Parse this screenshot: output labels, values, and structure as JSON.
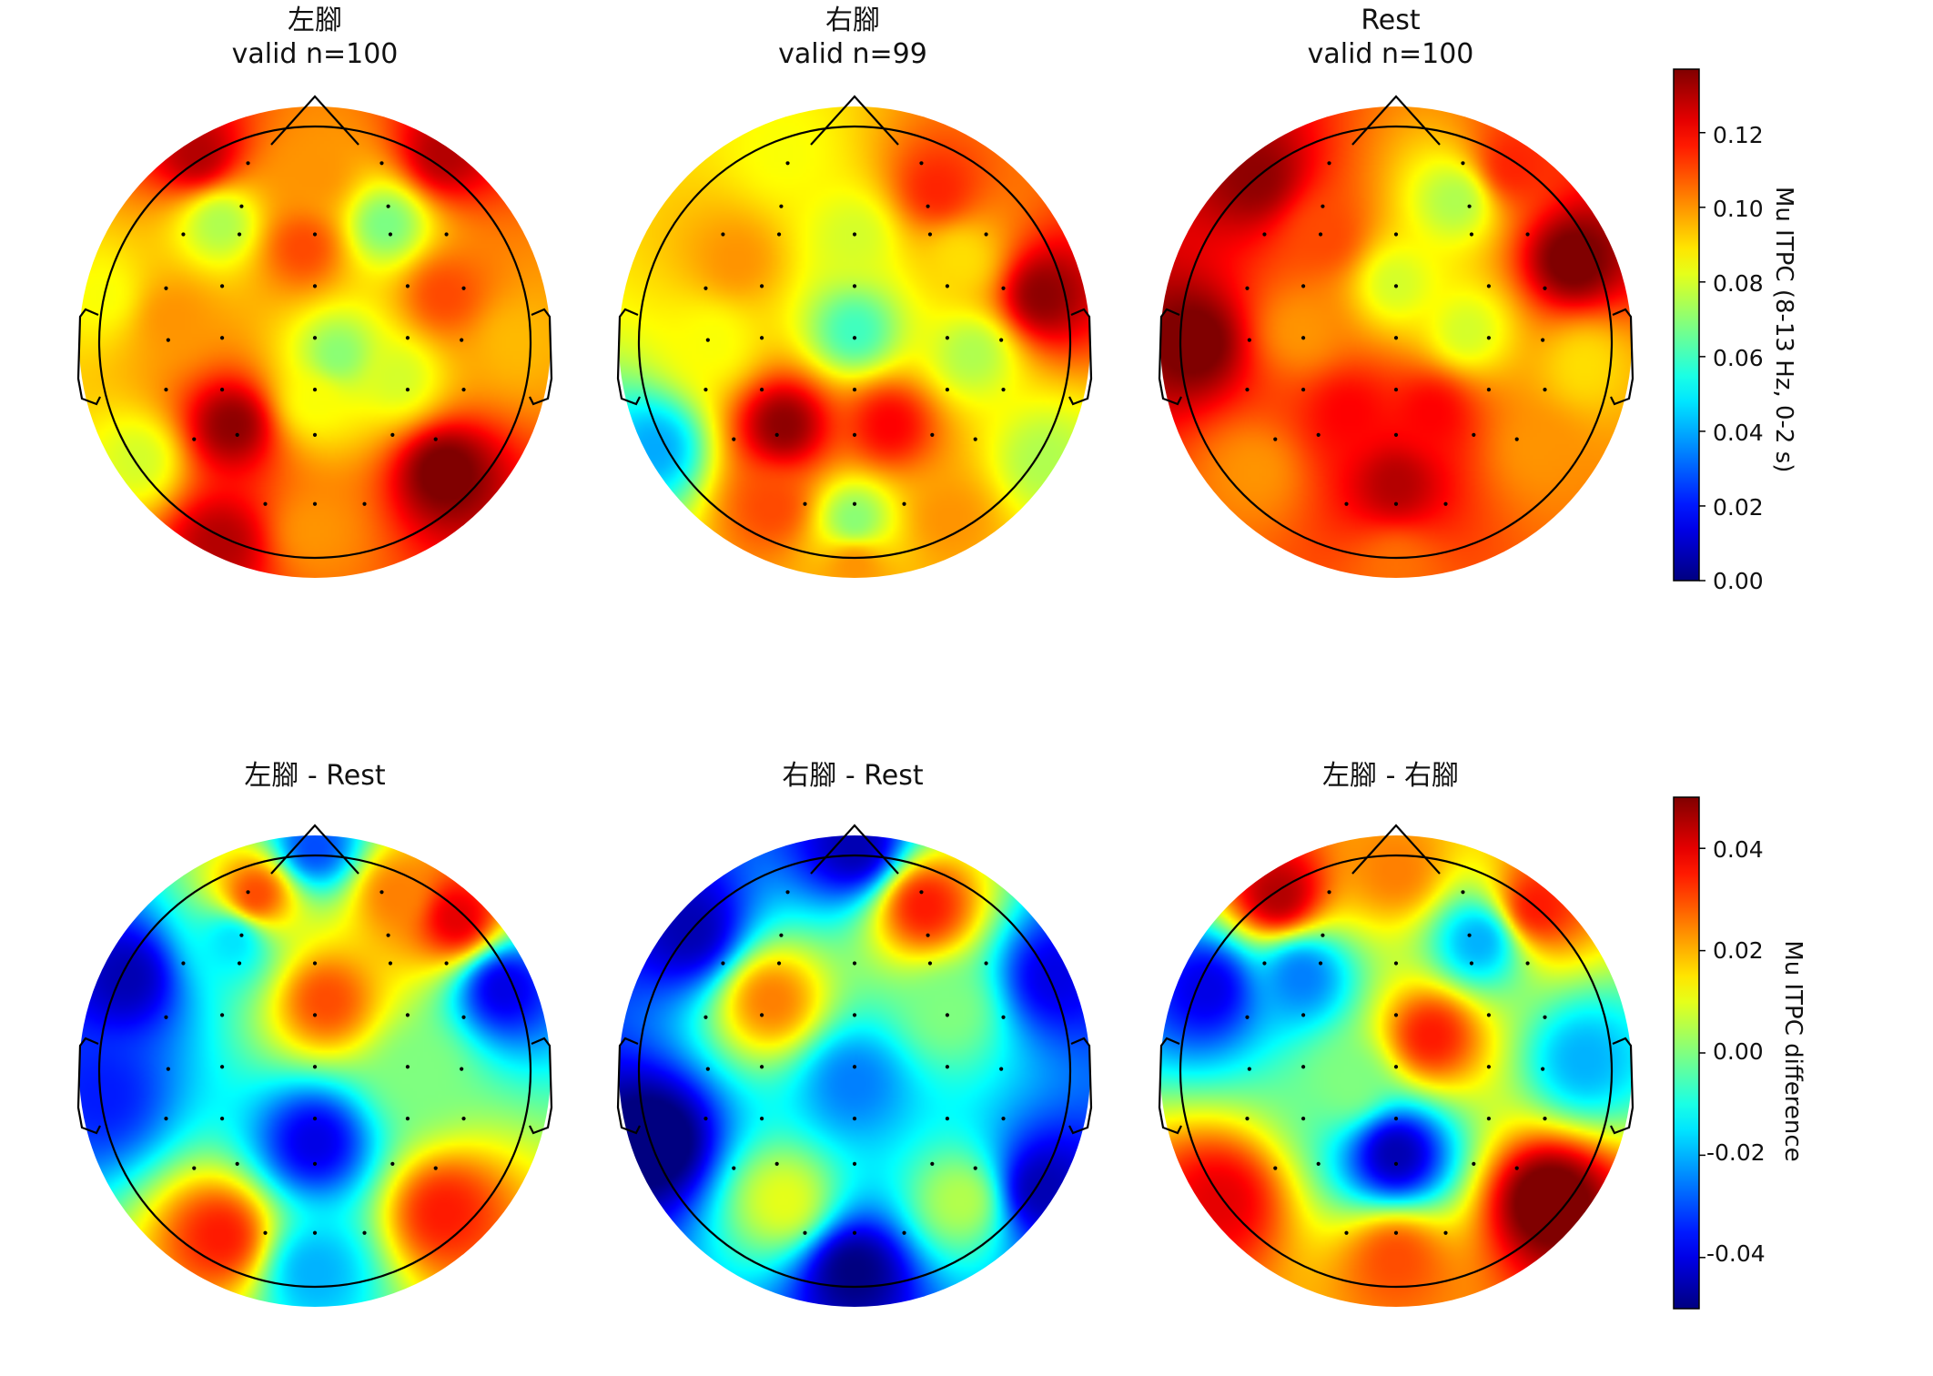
{
  "chart_data": [
    {
      "type": "heatmap",
      "subtype": "scalp-topomap",
      "colormap": "jet",
      "colorbar": {
        "label": "Mu ITPC (8-13 Hz, 0-2 s)",
        "range": [
          0.0,
          0.137
        ],
        "ticks": [
          "0.00",
          "0.02",
          "0.04",
          "0.06",
          "0.08",
          "0.10",
          "0.12"
        ]
      },
      "panels": [
        {
          "title": "左腳",
          "subtitle": "valid n=100"
        },
        {
          "title": "右腳",
          "subtitle": "valid n=99"
        },
        {
          "title": "Rest",
          "subtitle": "valid n=100"
        }
      ],
      "value_field": [
        [
          {
            "x": -0.5,
            "y": 0.8,
            "v": 0.13
          },
          {
            "x": 0.55,
            "y": 0.8,
            "v": 0.13
          },
          {
            "x": 0.0,
            "y": 0.72,
            "v": 0.1
          },
          {
            "x": -0.4,
            "y": 0.5,
            "v": 0.075
          },
          {
            "x": 0.3,
            "y": 0.5,
            "v": 0.068
          },
          {
            "x": -0.05,
            "y": 0.4,
            "v": 0.11
          },
          {
            "x": 0.55,
            "y": 0.2,
            "v": 0.11
          },
          {
            "x": -0.6,
            "y": 0.1,
            "v": 0.1
          },
          {
            "x": 0.1,
            "y": -0.05,
            "v": 0.07
          },
          {
            "x": -0.35,
            "y": -0.35,
            "v": 0.135
          },
          {
            "x": 0.55,
            "y": -0.55,
            "v": 0.14
          },
          {
            "x": 0.0,
            "y": -0.25,
            "v": 0.085
          },
          {
            "x": -0.75,
            "y": -0.5,
            "v": 0.08
          },
          {
            "x": 0.0,
            "y": -0.8,
            "v": 0.1
          },
          {
            "x": -0.4,
            "y": -0.85,
            "v": 0.13
          },
          {
            "x": 0.85,
            "y": 0.0,
            "v": 0.095
          },
          {
            "x": -0.9,
            "y": 0.2,
            "v": 0.085
          },
          {
            "x": 0.35,
            "y": -0.15,
            "v": 0.08
          }
        ],
        [
          {
            "x": -0.3,
            "y": 0.8,
            "v": 0.085
          },
          {
            "x": 0.35,
            "y": 0.65,
            "v": 0.115
          },
          {
            "x": 0.0,
            "y": 0.45,
            "v": 0.08
          },
          {
            "x": -0.5,
            "y": 0.35,
            "v": 0.1
          },
          {
            "x": 0.45,
            "y": 0.35,
            "v": 0.09
          },
          {
            "x": 0.8,
            "y": 0.2,
            "v": 0.135
          },
          {
            "x": 0.0,
            "y": 0.05,
            "v": 0.06
          },
          {
            "x": -0.6,
            "y": 0.0,
            "v": 0.085
          },
          {
            "x": 0.5,
            "y": -0.05,
            "v": 0.075
          },
          {
            "x": -0.3,
            "y": -0.35,
            "v": 0.135
          },
          {
            "x": 0.15,
            "y": -0.35,
            "v": 0.12
          },
          {
            "x": -0.85,
            "y": -0.45,
            "v": 0.04
          },
          {
            "x": 0.8,
            "y": -0.5,
            "v": 0.075
          },
          {
            "x": 0.0,
            "y": -0.75,
            "v": 0.07
          },
          {
            "x": -0.35,
            "y": -0.7,
            "v": 0.11
          },
          {
            "x": 0.4,
            "y": -0.75,
            "v": 0.1
          },
          {
            "x": 0.0,
            "y": -0.95,
            "v": 0.1
          }
        ],
        [
          {
            "x": -0.6,
            "y": 0.7,
            "v": 0.135
          },
          {
            "x": 0.5,
            "y": 0.75,
            "v": 0.115
          },
          {
            "x": 0.25,
            "y": 0.6,
            "v": 0.075
          },
          {
            "x": -0.3,
            "y": 0.45,
            "v": 0.11
          },
          {
            "x": 0.75,
            "y": 0.35,
            "v": 0.14
          },
          {
            "x": 0.0,
            "y": 0.25,
            "v": 0.08
          },
          {
            "x": 0.3,
            "y": 0.05,
            "v": 0.08
          },
          {
            "x": -0.85,
            "y": 0.0,
            "v": 0.14
          },
          {
            "x": -0.4,
            "y": 0.05,
            "v": 0.1
          },
          {
            "x": -0.2,
            "y": -0.3,
            "v": 0.12
          },
          {
            "x": 0.15,
            "y": -0.3,
            "v": 0.12
          },
          {
            "x": 0.0,
            "y": -0.6,
            "v": 0.13
          },
          {
            "x": 0.6,
            "y": -0.45,
            "v": 0.1
          },
          {
            "x": -0.6,
            "y": -0.55,
            "v": 0.1
          },
          {
            "x": 0.0,
            "y": -0.95,
            "v": 0.105
          },
          {
            "x": 0.8,
            "y": -0.1,
            "v": 0.09
          }
        ]
      ]
    },
    {
      "type": "heatmap",
      "subtype": "scalp-topomap",
      "colormap": "jet",
      "colorbar": {
        "label": "Mu ITPC difference",
        "range": [
          -0.05,
          0.05
        ],
        "ticks": [
          "-0.04",
          "-0.02",
          "0.00",
          "0.02",
          "0.04"
        ]
      },
      "panels": [
        {
          "title": "左腳 - Rest"
        },
        {
          "title": "右腳 - Rest"
        },
        {
          "title": "左腳 - 右腳"
        }
      ],
      "value_field": [
        [
          {
            "x": -0.8,
            "y": 0.4,
            "v": -0.045
          },
          {
            "x": 0.8,
            "y": 0.35,
            "v": -0.04
          },
          {
            "x": 0.0,
            "y": 0.95,
            "v": -0.03
          },
          {
            "x": -0.25,
            "y": 0.75,
            "v": 0.03
          },
          {
            "x": 0.35,
            "y": 0.75,
            "v": 0.025
          },
          {
            "x": 0.6,
            "y": 0.65,
            "v": 0.04
          },
          {
            "x": 0.05,
            "y": 0.3,
            "v": 0.03
          },
          {
            "x": -0.35,
            "y": 0.55,
            "v": -0.015
          },
          {
            "x": 0.0,
            "y": -0.3,
            "v": -0.04
          },
          {
            "x": -0.9,
            "y": -0.1,
            "v": -0.035
          },
          {
            "x": -0.4,
            "y": -0.7,
            "v": 0.035
          },
          {
            "x": 0.55,
            "y": -0.6,
            "v": 0.035
          },
          {
            "x": 0.0,
            "y": -0.85,
            "v": -0.02
          },
          {
            "x": 0.45,
            "y": 0.0,
            "v": 0.0
          }
        ],
        [
          {
            "x": -0.7,
            "y": 0.6,
            "v": -0.045
          },
          {
            "x": 0.0,
            "y": 0.95,
            "v": -0.045
          },
          {
            "x": 0.3,
            "y": 0.7,
            "v": 0.035
          },
          {
            "x": 0.85,
            "y": 0.4,
            "v": -0.04
          },
          {
            "x": -0.35,
            "y": 0.3,
            "v": 0.025
          },
          {
            "x": 0.0,
            "y": -0.05,
            "v": -0.025
          },
          {
            "x": -0.85,
            "y": -0.3,
            "v": -0.055
          },
          {
            "x": 0.8,
            "y": -0.5,
            "v": -0.045
          },
          {
            "x": 0.0,
            "y": -0.85,
            "v": -0.05
          },
          {
            "x": -0.3,
            "y": -0.55,
            "v": 0.01
          },
          {
            "x": 0.45,
            "y": -0.55,
            "v": 0.005
          },
          {
            "x": 0.4,
            "y": 0.25,
            "v": 0.0
          }
        ],
        [
          {
            "x": -0.5,
            "y": 0.75,
            "v": 0.045
          },
          {
            "x": 0.6,
            "y": 0.7,
            "v": 0.035
          },
          {
            "x": 0.0,
            "y": 0.85,
            "v": 0.025
          },
          {
            "x": -0.8,
            "y": 0.35,
            "v": -0.04
          },
          {
            "x": -0.4,
            "y": 0.4,
            "v": -0.025
          },
          {
            "x": 0.35,
            "y": 0.55,
            "v": -0.02
          },
          {
            "x": 0.15,
            "y": 0.15,
            "v": 0.035
          },
          {
            "x": 0.0,
            "y": -0.35,
            "v": -0.045
          },
          {
            "x": 0.8,
            "y": 0.05,
            "v": -0.02
          },
          {
            "x": -0.75,
            "y": -0.55,
            "v": 0.04
          },
          {
            "x": 0.65,
            "y": -0.55,
            "v": 0.055
          },
          {
            "x": 0.0,
            "y": -0.8,
            "v": 0.03
          },
          {
            "x": -0.2,
            "y": -0.05,
            "v": 0.0
          }
        ]
      ]
    }
  ]
}
